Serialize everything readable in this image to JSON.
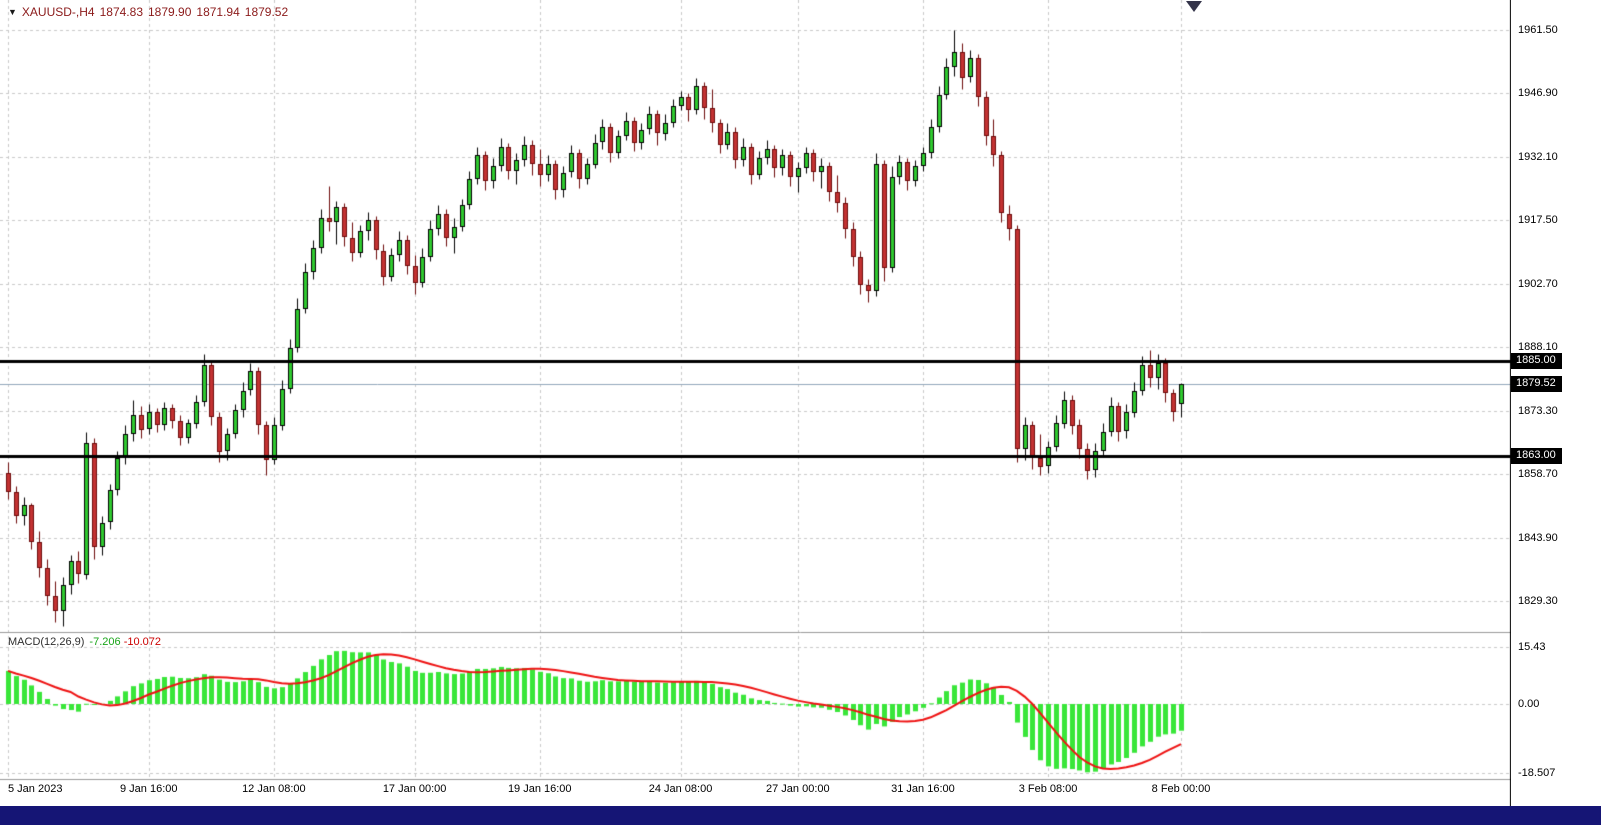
{
  "header": {
    "symbol_period": "XAUUSD-,H4",
    "open": "1874.83",
    "high": "1879.90",
    "low": "1871.94",
    "close": "1879.52"
  },
  "icons": {
    "symbol_expand": "▼"
  },
  "price_axis": {
    "ticks": [
      "1961.50",
      "1946.90",
      "1932.10",
      "1917.50",
      "1902.70",
      "1888.10",
      "1873.30",
      "1858.70",
      "1843.90",
      "1829.30"
    ],
    "levels": [
      {
        "label": "1885.00",
        "price": 1885.0
      },
      {
        "label": "1879.52",
        "price": 1879.52
      },
      {
        "label": "1863.00",
        "price": 1863.0
      }
    ]
  },
  "time_axis": {
    "ticks": [
      {
        "label": "5 Jan 2023",
        "index": 0
      },
      {
        "label": "9 Jan 16:00",
        "index": 18
      },
      {
        "label": "12 Jan 08:00",
        "index": 34
      },
      {
        "label": "17 Jan 00:00",
        "index": 52
      },
      {
        "label": "19 Jan 16:00",
        "index": 68
      },
      {
        "label": "24 Jan 08:00",
        "index": 86
      },
      {
        "label": "27 Jan 00:00",
        "index": 101
      },
      {
        "label": "31 Jan 16:00",
        "index": 117
      },
      {
        "label": "3 Feb 08:00",
        "index": 133
      },
      {
        "label": "8 Feb 00:00",
        "index": 150
      }
    ]
  },
  "macd_panel": {
    "title": "MACD(12,26,9)",
    "value_main": "-7.206",
    "value_signal": "-10.072",
    "ticks": [
      "15.43",
      "0.00",
      "-18.507"
    ],
    "params": {
      "fast": 12,
      "slow": 26,
      "signal": 9
    }
  },
  "colors": {
    "bull_body": "#2fc92f",
    "bull_border": "#000000",
    "bear_body": "#c23232",
    "bear_border": "#6e0b0b",
    "grid": "#c9c9c9",
    "level_line": "#000000",
    "bid_line": "#92a7bb",
    "macd_histogram": "#39e639",
    "macd_signal": "#ee1111",
    "axis_text": "#000000",
    "label_bg": "#000000",
    "label_text": "#ffffff",
    "header_text": "#8b1a1a",
    "panel_separator": "#9a9a9a",
    "axis_line": "#000000",
    "bottom_bar": "#151575"
  },
  "chart_data": [
    {
      "type": "candlestick",
      "title": "XAUUSD- H4",
      "y_ticks": [
        1961.5,
        1946.9,
        1932.1,
        1917.5,
        1902.7,
        1888.1,
        1873.3,
        1858.7,
        1843.9,
        1829.3
      ],
      "horizontal_levels": [
        {
          "price": 1885.0,
          "label": "1885.00"
        },
        {
          "price": 1863.0,
          "label": "1863.00"
        }
      ],
      "current_price": {
        "price": 1879.52,
        "label": "1879.52"
      },
      "last_candle_ohlc": {
        "open": 1874.83,
        "high": 1879.9,
        "low": 1871.94,
        "close": 1879.52
      },
      "candles": [
        [
          1859.0,
          1861.5,
          1853.0,
          1854.5
        ],
        [
          1854.5,
          1856.0,
          1847.5,
          1849.0
        ],
        [
          1849.0,
          1853.5,
          1847.0,
          1851.5
        ],
        [
          1851.5,
          1852.0,
          1841.5,
          1843.0
        ],
        [
          1843.0,
          1845.5,
          1835.0,
          1837.0
        ],
        [
          1837.0,
          1839.0,
          1828.5,
          1830.5
        ],
        [
          1830.5,
          1834.0,
          1824.5,
          1827.0
        ],
        [
          1827.0,
          1835.0,
          1823.5,
          1833.0
        ],
        [
          1833.0,
          1840.0,
          1831.0,
          1838.5
        ],
        [
          1838.5,
          1841.0,
          1833.5,
          1835.5
        ],
        [
          1835.5,
          1868.5,
          1834.5,
          1866.0
        ],
        [
          1866.0,
          1867.0,
          1839.0,
          1842.0
        ],
        [
          1842.0,
          1849.0,
          1840.0,
          1847.5
        ],
        [
          1847.5,
          1856.5,
          1846.0,
          1855.0
        ],
        [
          1855.0,
          1864.0,
          1854.0,
          1862.5
        ],
        [
          1862.5,
          1870.0,
          1861.0,
          1868.0
        ],
        [
          1868.0,
          1876.0,
          1866.5,
          1872.5
        ],
        [
          1872.5,
          1874.5,
          1867.0,
          1869.0
        ],
        [
          1869.0,
          1875.0,
          1868.0,
          1873.0
        ],
        [
          1873.0,
          1874.0,
          1868.5,
          1870.0
        ],
        [
          1870.0,
          1875.5,
          1869.0,
          1874.0
        ],
        [
          1874.0,
          1875.0,
          1869.5,
          1871.0
        ],
        [
          1871.0,
          1872.5,
          1865.5,
          1867.0
        ],
        [
          1867.0,
          1871.5,
          1866.0,
          1870.5
        ],
        [
          1870.5,
          1877.0,
          1869.5,
          1875.5
        ],
        [
          1875.5,
          1886.5,
          1874.5,
          1884.0
        ],
        [
          1884.0,
          1885.0,
          1870.0,
          1872.0
        ],
        [
          1872.0,
          1873.0,
          1861.5,
          1864.0
        ],
        [
          1864.0,
          1869.5,
          1862.0,
          1868.0
        ],
        [
          1868.0,
          1875.0,
          1867.0,
          1873.5
        ],
        [
          1873.5,
          1880.0,
          1872.0,
          1878.0
        ],
        [
          1878.0,
          1884.5,
          1877.0,
          1882.5
        ],
        [
          1882.5,
          1883.5,
          1868.0,
          1870.0
        ],
        [
          1870.0,
          1871.0,
          1858.5,
          1862.0
        ],
        [
          1862.0,
          1872.0,
          1861.0,
          1870.0
        ],
        [
          1870.0,
          1880.5,
          1869.0,
          1878.5
        ],
        [
          1878.5,
          1890.0,
          1877.5,
          1888.0
        ],
        [
          1888.0,
          1899.5,
          1887.0,
          1897.0
        ],
        [
          1897.0,
          1907.5,
          1896.0,
          1905.5
        ],
        [
          1905.5,
          1913.0,
          1904.0,
          1911.0
        ],
        [
          1911.0,
          1920.0,
          1910.0,
          1918.0
        ],
        [
          1918.0,
          1925.5,
          1915.0,
          1917.0
        ],
        [
          1917.0,
          1922.0,
          1912.0,
          1920.5
        ],
        [
          1920.5,
          1921.5,
          1911.5,
          1913.5
        ],
        [
          1913.5,
          1917.0,
          1908.0,
          1910.0
        ],
        [
          1910.0,
          1916.5,
          1909.0,
          1915.0
        ],
        [
          1915.0,
          1919.5,
          1913.0,
          1917.5
        ],
        [
          1917.5,
          1918.5,
          1908.5,
          1910.5
        ],
        [
          1910.5,
          1912.0,
          1902.5,
          1904.5
        ],
        [
          1904.5,
          1911.0,
          1903.5,
          1909.5
        ],
        [
          1909.5,
          1915.0,
          1908.0,
          1913.0
        ],
        [
          1913.0,
          1914.0,
          1905.0,
          1907.0
        ],
        [
          1907.0,
          1909.5,
          1900.5,
          1903.0
        ],
        [
          1903.0,
          1911.0,
          1902.0,
          1909.0
        ],
        [
          1909.0,
          1917.5,
          1908.0,
          1915.5
        ],
        [
          1915.5,
          1921.0,
          1914.0,
          1919.0
        ],
        [
          1919.0,
          1920.0,
          1911.5,
          1913.5
        ],
        [
          1913.5,
          1918.0,
          1910.0,
          1916.0
        ],
        [
          1916.0,
          1922.5,
          1915.0,
          1921.0
        ],
        [
          1921.0,
          1929.0,
          1920.0,
          1927.0
        ],
        [
          1927.0,
          1934.5,
          1926.0,
          1932.5
        ],
        [
          1932.5,
          1933.5,
          1924.5,
          1926.5
        ],
        [
          1926.5,
          1932.0,
          1925.0,
          1930.0
        ],
        [
          1930.0,
          1936.5,
          1929.0,
          1934.5
        ],
        [
          1934.5,
          1935.5,
          1927.0,
          1929.0
        ],
        [
          1929.0,
          1933.0,
          1926.0,
          1931.5
        ],
        [
          1931.5,
          1937.0,
          1930.0,
          1935.0
        ],
        [
          1935.0,
          1936.0,
          1928.0,
          1930.5
        ],
        [
          1930.5,
          1934.0,
          1925.5,
          1928.0
        ],
        [
          1928.0,
          1932.5,
          1926.5,
          1930.5
        ],
        [
          1930.5,
          1931.5,
          1922.5,
          1924.5
        ],
        [
          1924.5,
          1930.0,
          1923.0,
          1928.5
        ],
        [
          1928.5,
          1935.0,
          1927.5,
          1933.0
        ],
        [
          1933.0,
          1934.0,
          1925.0,
          1927.0
        ],
        [
          1927.0,
          1932.0,
          1926.0,
          1930.5
        ],
        [
          1930.5,
          1937.5,
          1929.5,
          1935.5
        ],
        [
          1935.5,
          1941.0,
          1934.0,
          1939.0
        ],
        [
          1939.0,
          1940.0,
          1931.0,
          1933.0
        ],
        [
          1933.0,
          1938.5,
          1932.0,
          1937.0
        ],
        [
          1937.0,
          1942.5,
          1936.0,
          1940.5
        ],
        [
          1940.5,
          1941.5,
          1933.5,
          1935.5
        ],
        [
          1935.5,
          1940.0,
          1934.0,
          1938.5
        ],
        [
          1938.5,
          1944.0,
          1937.5,
          1942.0
        ],
        [
          1942.0,
          1943.0,
          1935.0,
          1937.5
        ],
        [
          1937.5,
          1942.0,
          1936.0,
          1940.0
        ],
        [
          1940.0,
          1945.5,
          1939.0,
          1944.0
        ],
        [
          1944.0,
          1947.5,
          1943.0,
          1946.0
        ],
        [
          1946.0,
          1947.0,
          1940.5,
          1943.0
        ],
        [
          1943.0,
          1950.5,
          1942.0,
          1948.5
        ],
        [
          1948.5,
          1949.5,
          1941.0,
          1943.5
        ],
        [
          1943.5,
          1948.0,
          1938.0,
          1940.0
        ],
        [
          1940.0,
          1941.0,
          1933.0,
          1935.0
        ],
        [
          1935.0,
          1940.0,
          1934.0,
          1938.0
        ],
        [
          1938.0,
          1939.0,
          1929.5,
          1931.5
        ],
        [
          1931.5,
          1936.5,
          1930.0,
          1934.5
        ],
        [
          1934.5,
          1935.5,
          1926.0,
          1928.0
        ],
        [
          1928.0,
          1933.5,
          1927.0,
          1932.0
        ],
        [
          1932.0,
          1936.0,
          1930.5,
          1934.0
        ],
        [
          1934.0,
          1935.0,
          1927.5,
          1929.5
        ],
        [
          1929.5,
          1934.0,
          1928.0,
          1932.5
        ],
        [
          1932.5,
          1933.5,
          1925.5,
          1927.5
        ],
        [
          1927.5,
          1931.0,
          1924.0,
          1929.5
        ],
        [
          1929.5,
          1934.5,
          1928.5,
          1933.0
        ],
        [
          1933.0,
          1934.0,
          1926.5,
          1928.5
        ],
        [
          1928.5,
          1932.0,
          1925.0,
          1930.0
        ],
        [
          1930.0,
          1931.0,
          1922.0,
          1924.0
        ],
        [
          1924.0,
          1928.0,
          1919.5,
          1921.5
        ],
        [
          1921.5,
          1923.0,
          1913.5,
          1915.5
        ],
        [
          1915.5,
          1917.0,
          1907.0,
          1909.0
        ],
        [
          1909.0,
          1910.5,
          1900.5,
          1902.5
        ],
        [
          1902.5,
          1904.0,
          1898.5,
          1901.0
        ],
        [
          1901.0,
          1933.0,
          1900.0,
          1930.5
        ],
        [
          1930.5,
          1931.5,
          1903.5,
          1906.5
        ],
        [
          1906.5,
          1930.0,
          1905.5,
          1927.5
        ],
        [
          1927.5,
          1932.5,
          1926.0,
          1931.0
        ],
        [
          1931.0,
          1932.0,
          1924.5,
          1926.5
        ],
        [
          1926.5,
          1931.5,
          1925.5,
          1930.0
        ],
        [
          1930.0,
          1934.5,
          1929.0,
          1933.0
        ],
        [
          1933.0,
          1941.0,
          1932.0,
          1939.0
        ],
        [
          1939.0,
          1948.5,
          1938.0,
          1946.5
        ],
        [
          1946.5,
          1955.0,
          1945.5,
          1953.0
        ],
        [
          1953.0,
          1961.5,
          1951.0,
          1956.5
        ],
        [
          1956.5,
          1958.5,
          1948.0,
          1950.5
        ],
        [
          1950.5,
          1957.0,
          1949.5,
          1955.0
        ],
        [
          1955.0,
          1956.0,
          1944.0,
          1946.0
        ],
        [
          1946.0,
          1947.5,
          1935.0,
          1937.0
        ],
        [
          1937.0,
          1941.0,
          1930.0,
          1932.5
        ],
        [
          1932.5,
          1933.5,
          1917.0,
          1919.0
        ],
        [
          1919.0,
          1921.0,
          1913.0,
          1915.5
        ],
        [
          1915.5,
          1916.5,
          1861.5,
          1864.5
        ],
        [
          1864.5,
          1872.0,
          1862.0,
          1870.0
        ],
        [
          1870.0,
          1871.0,
          1860.0,
          1862.5
        ],
        [
          1862.5,
          1868.0,
          1858.5,
          1860.5
        ],
        [
          1860.5,
          1866.5,
          1859.0,
          1865.0
        ],
        [
          1865.0,
          1872.5,
          1864.0,
          1870.5
        ],
        [
          1870.5,
          1878.0,
          1869.5,
          1876.0
        ],
        [
          1876.0,
          1877.0,
          1868.0,
          1870.0
        ],
        [
          1870.0,
          1871.5,
          1862.5,
          1864.5
        ],
        [
          1864.5,
          1866.0,
          1857.5,
          1859.5
        ],
        [
          1859.5,
          1866.0,
          1858.0,
          1864.0
        ],
        [
          1864.0,
          1870.5,
          1863.0,
          1868.5
        ],
        [
          1868.5,
          1876.5,
          1867.5,
          1874.5
        ],
        [
          1874.5,
          1875.5,
          1866.5,
          1868.5
        ],
        [
          1868.5,
          1875.0,
          1867.0,
          1873.0
        ],
        [
          1873.0,
          1880.0,
          1872.0,
          1878.0
        ],
        [
          1878.0,
          1886.0,
          1877.0,
          1884.0
        ],
        [
          1884.0,
          1887.5,
          1879.0,
          1881.0
        ],
        [
          1881.0,
          1886.5,
          1878.5,
          1884.5
        ],
        [
          1884.5,
          1885.5,
          1875.5,
          1877.5
        ],
        [
          1877.5,
          1878.5,
          1871.0,
          1873.0
        ],
        [
          1874.83,
          1879.9,
          1871.94,
          1879.52
        ]
      ]
    },
    {
      "type": "bar",
      "title": "MACD(12,26,9)",
      "y_ticks": [
        15.43,
        0.0,
        -18.507
      ],
      "last_values": {
        "macd": -7.206,
        "signal": -10.072
      },
      "params": {
        "fast": 12,
        "slow": 26,
        "signal": 9
      }
    }
  ]
}
